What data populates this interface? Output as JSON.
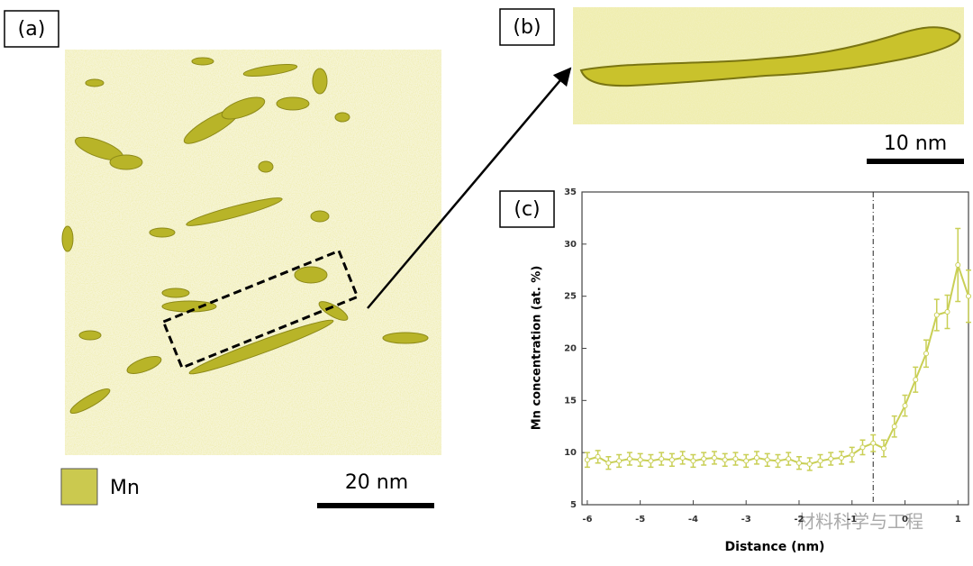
{
  "panels": {
    "a": {
      "label": "(a)",
      "legend": "Mn",
      "scale_bar": "20 nm"
    },
    "b": {
      "label": "(b)",
      "scale_bar": "10 nm"
    },
    "c": {
      "label": "(c)"
    }
  },
  "watermark": "材料科学与工程",
  "chart_data": {
    "type": "line",
    "x_label": "Distance (nm)",
    "y_label": "Mn concentration (at. %)",
    "x": [
      -6.0,
      -5.8,
      -5.6,
      -5.4,
      -5.2,
      -5.0,
      -4.8,
      -4.6,
      -4.4,
      -4.2,
      -4.0,
      -3.8,
      -3.6,
      -3.4,
      -3.2,
      -3.0,
      -2.8,
      -2.6,
      -2.4,
      -2.2,
      -2.0,
      -1.8,
      -1.6,
      -1.4,
      -1.2,
      -1.0,
      -0.8,
      -0.6,
      -0.4,
      -0.2,
      0.0,
      0.2,
      0.4,
      0.6,
      0.8,
      1.0,
      1.2
    ],
    "series": [
      {
        "name": "Mn",
        "color": "#c9cf55",
        "values": [
          9.3,
          9.6,
          9.0,
          9.2,
          9.4,
          9.3,
          9.2,
          9.4,
          9.3,
          9.5,
          9.2,
          9.4,
          9.5,
          9.3,
          9.4,
          9.2,
          9.5,
          9.3,
          9.2,
          9.4,
          9.0,
          8.9,
          9.2,
          9.4,
          9.5,
          9.8,
          10.5,
          10.9,
          10.4,
          12.5,
          14.5,
          17.0,
          19.5,
          23.2,
          23.5,
          28.0,
          25.0
        ],
        "errors": [
          0.7,
          0.6,
          0.6,
          0.6,
          0.6,
          0.6,
          0.6,
          0.6,
          0.6,
          0.6,
          0.6,
          0.6,
          0.6,
          0.6,
          0.6,
          0.6,
          0.6,
          0.6,
          0.6,
          0.6,
          0.6,
          0.6,
          0.6,
          0.6,
          0.6,
          0.7,
          0.7,
          0.8,
          0.8,
          1.0,
          1.0,
          1.2,
          1.3,
          1.5,
          1.6,
          3.5,
          2.5
        ]
      }
    ],
    "xlim": [
      -6.1,
      1.2
    ],
    "xticks": [
      -6,
      -5,
      -4,
      -3,
      -2,
      -1,
      0,
      1
    ],
    "ylim": [
      5,
      35
    ],
    "yticks": [
      5,
      10,
      15,
      20,
      25,
      30,
      35
    ],
    "marker_x": -0.6
  }
}
